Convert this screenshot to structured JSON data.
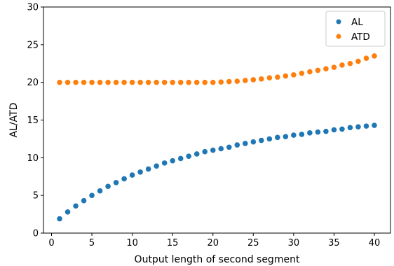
{
  "chart_data": {
    "type": "scatter",
    "xlabel": "Output length of second segment",
    "ylabel": "AL/ATD",
    "xlim": [
      -1,
      42
    ],
    "ylim": [
      0,
      30
    ],
    "xticks": [
      0,
      5,
      10,
      15,
      20,
      25,
      30,
      35,
      40
    ],
    "yticks": [
      0,
      5,
      10,
      15,
      20,
      25,
      30
    ],
    "grid": false,
    "legend_position": "top-right",
    "x": [
      1,
      2,
      3,
      4,
      5,
      6,
      7,
      8,
      9,
      10,
      11,
      12,
      13,
      14,
      15,
      16,
      17,
      18,
      19,
      20,
      21,
      22,
      23,
      24,
      25,
      26,
      27,
      28,
      29,
      30,
      31,
      32,
      33,
      34,
      35,
      36,
      37,
      38,
      39,
      40
    ],
    "series": [
      {
        "name": "AL",
        "color": "#1f77b4",
        "values": [
          1.9,
          2.8,
          3.6,
          4.3,
          5.0,
          5.6,
          6.2,
          6.7,
          7.2,
          7.7,
          8.1,
          8.5,
          8.9,
          9.3,
          9.6,
          9.9,
          10.2,
          10.5,
          10.8,
          11.0,
          11.2,
          11.4,
          11.7,
          11.9,
          12.1,
          12.3,
          12.5,
          12.7,
          12.8,
          13.0,
          13.1,
          13.3,
          13.4,
          13.5,
          13.7,
          13.8,
          14.0,
          14.1,
          14.2,
          14.3
        ]
      },
      {
        "name": "ATD",
        "color": "#ff7f0e",
        "values": [
          20.0,
          20.0,
          20.0,
          20.0,
          20.0,
          20.0,
          20.0,
          20.0,
          20.0,
          20.0,
          20.0,
          20.0,
          20.0,
          20.0,
          20.0,
          20.0,
          20.0,
          20.0,
          20.0,
          20.0,
          20.05,
          20.1,
          20.15,
          20.25,
          20.35,
          20.45,
          20.6,
          20.7,
          20.85,
          21.0,
          21.2,
          21.4,
          21.6,
          21.8,
          22.0,
          22.3,
          22.5,
          22.8,
          23.2,
          23.5
        ]
      }
    ]
  }
}
